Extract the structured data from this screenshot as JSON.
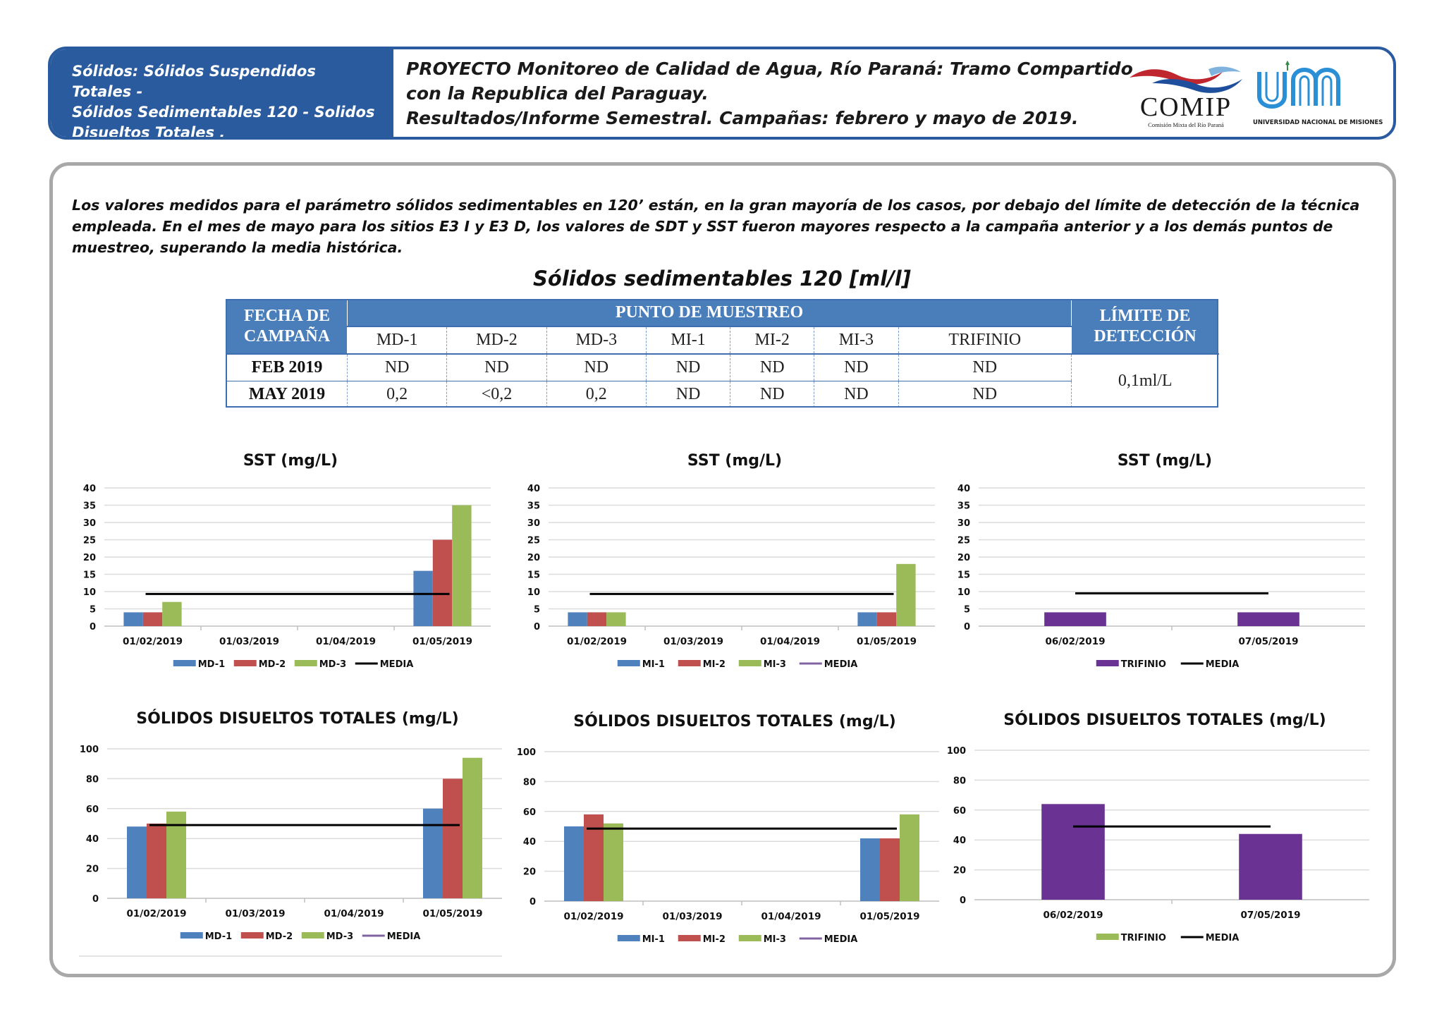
{
  "header": {
    "left_lines": [
      "Sólidos: Sólidos Suspendidos Totales -",
      "Sólidos Sedimentables 120 - Solidos",
      "Disueltos Totales ."
    ],
    "title_lines": [
      "PROYECTO Monitoreo de Calidad de Agua, Río Paraná: Tramo Compartido",
      "con la Republica del Paraguay.",
      "Resultados/Informe Semestral. Campañas: febrero y mayo de 2019."
    ],
    "comip_name": "COMIP",
    "comip_sub": "Comisión Mixta del Río Paraná",
    "unam_sub": "UNIVERSIDAD NACIONAL DE MISIONES",
    "colors": {
      "primary": "#2a5b9e",
      "comip_red": "#c0262d",
      "comip_blue": "#1e4f9c",
      "unam_blue": "#2b8fd6"
    }
  },
  "intro_text": "Los valores medidos para el parámetro sólidos sedimentables en 120’ están, en la gran mayoría de los casos, por debajo del límite de detección de la técnica empleada. En el mes de mayo para los sitios E3 I y E3 D, los valores de SDT y SST fueron mayores respecto a la campaña anterior y a los demás puntos de muestreo, superando la media histórica.",
  "table": {
    "title": "Sólidos sedimentables 120 [ml/l]",
    "h_fecha": "FECHA DE CAMPAÑA",
    "h_punto": "PUNTO DE MUESTREO",
    "h_limite": "LÍMITE DE DETECCIÓN",
    "points": [
      "MD-1",
      "MD-2",
      "MD-3",
      "MI-1",
      "MI-2",
      "MI-3",
      "TRIFINIO"
    ],
    "rows": [
      {
        "label": "FEB 2019",
        "values": [
          "ND",
          "ND",
          "ND",
          "ND",
          "ND",
          "ND",
          "ND"
        ]
      },
      {
        "label": "MAY 2019",
        "values": [
          "0,2",
          "<0,2",
          "0,2",
          "ND",
          "ND",
          "ND",
          "ND"
        ]
      }
    ],
    "limite": "0,1ml/L"
  },
  "chart_data": [
    {
      "type": "bar",
      "title": "SST (mg/L)",
      "categories": [
        "01/02/2019",
        "01/03/2019",
        "01/04/2019",
        "01/05/2019"
      ],
      "ylim": [
        0,
        40
      ],
      "yticks": [
        0,
        5,
        10,
        15,
        20,
        25,
        30,
        35,
        40
      ],
      "series": [
        {
          "name": "MD-1",
          "color": "#4f81bd",
          "values": [
            4,
            null,
            null,
            16
          ]
        },
        {
          "name": "MD-2",
          "color": "#c0504d",
          "values": [
            4,
            null,
            null,
            25
          ]
        },
        {
          "name": "MD-3",
          "color": "#9bbb59",
          "values": [
            7,
            null,
            null,
            35
          ]
        }
      ],
      "line": {
        "name": "MEDIA",
        "color": "#000000",
        "value": 9.3
      },
      "grid": true,
      "legend": "bottom"
    },
    {
      "type": "bar",
      "title": "SST (mg/L)",
      "categories": [
        "01/02/2019",
        "01/03/2019",
        "01/04/2019",
        "01/05/2019"
      ],
      "ylim": [
        0,
        40
      ],
      "yticks": [
        0,
        5,
        10,
        15,
        20,
        25,
        30,
        35,
        40
      ],
      "series": [
        {
          "name": "MI-1",
          "color": "#4f81bd",
          "values": [
            4,
            null,
            null,
            4
          ]
        },
        {
          "name": "MI-2",
          "color": "#c0504d",
          "values": [
            4,
            null,
            null,
            4
          ]
        },
        {
          "name": "MI-3",
          "color": "#9bbb59",
          "values": [
            4,
            null,
            null,
            18
          ]
        }
      ],
      "line": {
        "name": "MEDIA",
        "color": "#000000",
        "value": 9.3
      },
      "line_legend_color": "#8064a2",
      "grid": true,
      "legend": "bottom"
    },
    {
      "type": "bar",
      "title": "SST (mg/L)",
      "categories": [
        "06/02/2019",
        "07/05/2019"
      ],
      "ylim": [
        0,
        40
      ],
      "yticks": [
        0,
        5,
        10,
        15,
        20,
        25,
        30,
        35,
        40
      ],
      "series": [
        {
          "name": "TRIFINIO",
          "color": "#6a3393",
          "values": [
            4,
            4
          ]
        }
      ],
      "line": {
        "name": "MEDIA",
        "color": "#000000",
        "value": 9.5
      },
      "grid": true,
      "legend": "bottom"
    },
    {
      "type": "bar",
      "title": "SÓLIDOS DISUELTOS TOTALES (mg/L)",
      "categories": [
        "01/02/2019",
        "01/03/2019",
        "01/04/2019",
        "01/05/2019"
      ],
      "ylim": [
        0,
        100
      ],
      "yticks": [
        0,
        20,
        40,
        60,
        80,
        100
      ],
      "series": [
        {
          "name": "MD-1",
          "color": "#4f81bd",
          "values": [
            48,
            null,
            null,
            60
          ]
        },
        {
          "name": "MD-2",
          "color": "#c0504d",
          "values": [
            50,
            null,
            null,
            80
          ]
        },
        {
          "name": "MD-3",
          "color": "#9bbb59",
          "values": [
            58,
            null,
            null,
            94
          ]
        }
      ],
      "line": {
        "name": "MEDIA",
        "color": "#000000",
        "value": 49
      },
      "line_legend_color": "#8064a2",
      "grid": true,
      "legend": "bottom"
    },
    {
      "type": "bar",
      "title": "SÓLIDOS DISUELTOS TOTALES (mg/L)",
      "categories": [
        "01/02/2019",
        "01/03/2019",
        "01/04/2019",
        "01/05/2019"
      ],
      "ylim": [
        0,
        100
      ],
      "yticks": [
        0,
        20,
        40,
        60,
        80,
        100
      ],
      "series": [
        {
          "name": "MI-1",
          "color": "#4f81bd",
          "values": [
            50,
            null,
            null,
            42
          ]
        },
        {
          "name": "MI-2",
          "color": "#c0504d",
          "values": [
            58,
            null,
            null,
            42
          ]
        },
        {
          "name": "MI-3",
          "color": "#9bbb59",
          "values": [
            52,
            null,
            null,
            58
          ]
        }
      ],
      "line": {
        "name": "MEDIA",
        "color": "#000000",
        "value": 48.5
      },
      "line_legend_color": "#8064a2",
      "grid": true,
      "legend": "bottom"
    },
    {
      "type": "bar",
      "title": "SÓLIDOS DISUELTOS TOTALES (mg/L)",
      "categories": [
        "06/02/2019",
        "07/05/2019"
      ],
      "ylim": [
        0,
        100
      ],
      "yticks": [
        0,
        20,
        40,
        60,
        80,
        100
      ],
      "series": [
        {
          "name": "TRIFINIO",
          "color": "#6a3393",
          "values": [
            64,
            44
          ],
          "legend_color": "#9bbb59"
        }
      ],
      "line": {
        "name": "MEDIA",
        "color": "#000000",
        "value": 49
      },
      "grid": true,
      "legend": "bottom"
    }
  ]
}
